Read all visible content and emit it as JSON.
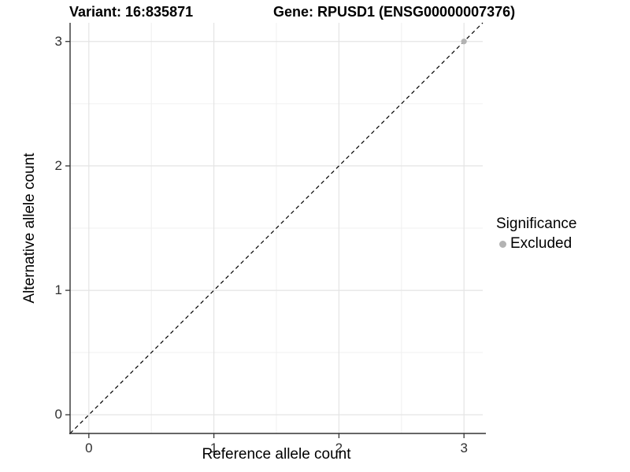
{
  "titles": {
    "variant": "Variant: 16:835871",
    "gene": "Gene: RPUSD1 (ENSG00000007376)"
  },
  "axes": {
    "x": {
      "label": "Reference allele count",
      "ticks": [
        "0",
        "1",
        "2",
        "3"
      ]
    },
    "y": {
      "label": "Alternative allele count",
      "ticks": [
        "0",
        "1",
        "2",
        "3"
      ]
    }
  },
  "legend": {
    "title": "Significance",
    "items": [
      {
        "label": "Excluded",
        "color": "#b3b3b3"
      }
    ]
  },
  "colors": {
    "background": "#ffffff",
    "grid_major": "#e4e4e4",
    "grid_minor": "#f0f0f0",
    "axis_line": "#333333",
    "tick_mark": "#333333",
    "reference_line": "#000000",
    "point": "#b3b3b3"
  },
  "chart_data": {
    "type": "scatter",
    "title": "Variant: 16:835871    Gene: RPUSD1 (ENSG00000007376)",
    "xlabel": "Reference allele count",
    "ylabel": "Alternative allele count",
    "xlim": [
      -0.15,
      3.15
    ],
    "ylim": [
      -0.15,
      3.15
    ],
    "x_ticks": [
      0,
      1,
      2,
      3
    ],
    "y_ticks": [
      0,
      1,
      2,
      3
    ],
    "grid": "major at integers, minor at 0.5 steps; light gray on white; axis lines left+bottom only",
    "legend_position": "right",
    "legend_title": "Significance",
    "series": [
      {
        "name": "Excluded",
        "color": "#b3b3b3",
        "points": [
          {
            "x": 3,
            "y": 3
          }
        ]
      }
    ],
    "annotations": [
      {
        "type": "line",
        "style": "dashed",
        "equation": "y = x",
        "from": [
          -0.15,
          -0.15
        ],
        "to": [
          3.15,
          3.15
        ]
      }
    ]
  }
}
